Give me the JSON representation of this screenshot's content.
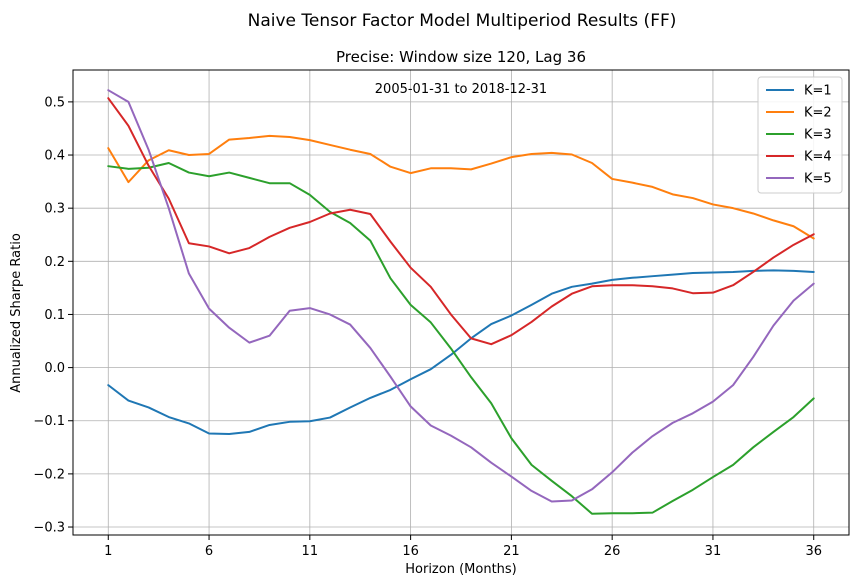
{
  "chart_data": {
    "type": "line",
    "title": "Naive Tensor Factor Model Multiperiod Results (FF)",
    "subtitle": "Precise: Window size 120, Lag 36",
    "annotation": "2005-01-31 to 2018-12-31",
    "xlabel": "Horizon (Months)",
    "ylabel": "Annualized Sharpe Ratio",
    "xlim": [
      -0.75,
      37.75
    ],
    "ylim": [
      -0.315,
      0.56
    ],
    "xticks": [
      1,
      6,
      11,
      16,
      21,
      26,
      31,
      36
    ],
    "yticks": [
      -0.3,
      -0.2,
      -0.1,
      0.0,
      0.1,
      0.2,
      0.3,
      0.4,
      0.5
    ],
    "ytick_labels": [
      "−0.3",
      "−0.2",
      "−0.1",
      "0.0",
      "0.1",
      "0.2",
      "0.3",
      "0.4",
      "0.5"
    ],
    "grid": true,
    "legend_position": "upper-right",
    "x": [
      1,
      2,
      3,
      4,
      5,
      6,
      7,
      8,
      9,
      10,
      11,
      12,
      13,
      14,
      15,
      16,
      17,
      18,
      19,
      20,
      21,
      22,
      23,
      24,
      25,
      26,
      27,
      28,
      29,
      30,
      31,
      32,
      33,
      34,
      35,
      36
    ],
    "series": [
      {
        "name": "K=1",
        "color": "#1f77b4",
        "values": [
          -0.033,
          -0.062,
          -0.075,
          -0.093,
          -0.105,
          -0.124,
          -0.125,
          -0.121,
          -0.108,
          -0.102,
          -0.101,
          -0.094,
          -0.075,
          -0.057,
          -0.042,
          -0.022,
          -0.003,
          0.024,
          0.055,
          0.082,
          0.098,
          0.118,
          0.139,
          0.152,
          0.158,
          0.165,
          0.169,
          0.172,
          0.175,
          0.178,
          0.179,
          0.18,
          0.182,
          0.183,
          0.182,
          0.18
        ]
      },
      {
        "name": "K=2",
        "color": "#ff7f0e",
        "values": [
          0.413,
          0.349,
          0.39,
          0.409,
          0.4,
          0.402,
          0.429,
          0.432,
          0.436,
          0.434,
          0.428,
          0.419,
          0.41,
          0.402,
          0.378,
          0.366,
          0.375,
          0.375,
          0.373,
          0.384,
          0.396,
          0.402,
          0.404,
          0.401,
          0.385,
          0.355,
          0.348,
          0.34,
          0.326,
          0.319,
          0.307,
          0.3,
          0.29,
          0.277,
          0.266,
          0.243
        ]
      },
      {
        "name": "K=3",
        "color": "#2ca02c",
        "values": [
          0.379,
          0.374,
          0.376,
          0.385,
          0.367,
          0.36,
          0.367,
          0.357,
          0.347,
          0.347,
          0.325,
          0.293,
          0.272,
          0.239,
          0.168,
          0.118,
          0.085,
          0.036,
          -0.018,
          -0.067,
          -0.133,
          -0.183,
          -0.213,
          -0.242,
          -0.275,
          -0.274,
          -0.274,
          -0.273,
          -0.251,
          -0.23,
          -0.206,
          -0.183,
          -0.15,
          -0.121,
          -0.093,
          -0.058
        ]
      },
      {
        "name": "K=4",
        "color": "#d62728",
        "values": [
          0.507,
          0.455,
          0.38,
          0.318,
          0.234,
          0.228,
          0.215,
          0.225,
          0.246,
          0.263,
          0.274,
          0.29,
          0.297,
          0.289,
          0.237,
          0.188,
          0.152,
          0.1,
          0.055,
          0.044,
          0.061,
          0.086,
          0.115,
          0.139,
          0.153,
          0.155,
          0.155,
          0.153,
          0.149,
          0.14,
          0.141,
          0.155,
          0.18,
          0.207,
          0.231,
          0.251
        ]
      },
      {
        "name": "K=5",
        "color": "#9467bd",
        "values": [
          0.522,
          0.5,
          0.41,
          0.3,
          0.177,
          0.111,
          0.075,
          0.047,
          0.06,
          0.107,
          0.112,
          0.1,
          0.081,
          0.037,
          -0.017,
          -0.073,
          -0.109,
          -0.128,
          -0.15,
          -0.179,
          -0.205,
          -0.232,
          -0.252,
          -0.25,
          -0.229,
          -0.197,
          -0.16,
          -0.129,
          -0.104,
          -0.086,
          -0.064,
          -0.033,
          0.02,
          0.079,
          0.126,
          0.158
        ]
      }
    ]
  }
}
